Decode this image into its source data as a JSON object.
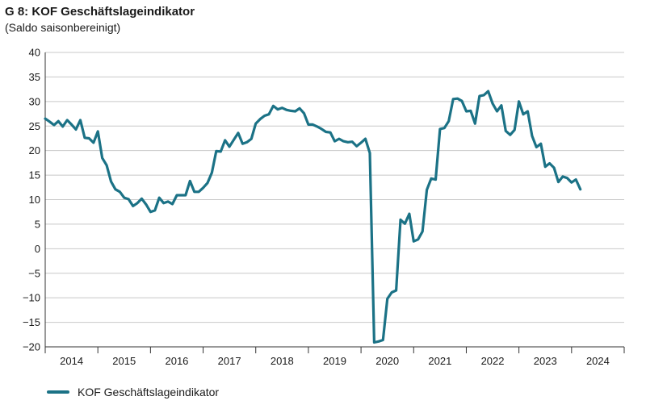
{
  "title": "G 8: KOF Geschäftslageindikator",
  "subtitle": "(Saldo saisonbereinigt)",
  "legend": {
    "label": "KOF Geschäftslageindikator"
  },
  "colors": {
    "series": "#1b7286",
    "grid": "#c8c8c8",
    "axis": "#333333"
  },
  "chart_data": {
    "type": "line",
    "title": "G 8: KOF Geschäftslageindikator",
    "subtitle": "(Saldo saisonbereinigt)",
    "ylim": [
      -20,
      40
    ],
    "yticks": [
      40,
      35,
      30,
      25,
      20,
      15,
      10,
      5,
      0,
      -5,
      -10,
      -15,
      -20
    ],
    "xlim": [
      2014.0,
      2025.0
    ],
    "xtick_labels": [
      "2014",
      "2015",
      "2016",
      "2017",
      "2018",
      "2019",
      "2020",
      "2021",
      "2022",
      "2023",
      "2024"
    ],
    "grid": "horizontal",
    "legend_position": "bottom-left",
    "series": [
      {
        "name": "KOF Geschäftslageindikator",
        "x": [
          2014.0,
          2014.083,
          2014.167,
          2014.25,
          2014.333,
          2014.417,
          2014.5,
          2014.583,
          2014.667,
          2014.75,
          2014.833,
          2014.917,
          2015.0,
          2015.083,
          2015.167,
          2015.25,
          2015.333,
          2015.417,
          2015.5,
          2015.583,
          2015.667,
          2015.75,
          2015.833,
          2015.917,
          2016.0,
          2016.083,
          2016.167,
          2016.25,
          2016.333,
          2016.417,
          2016.5,
          2016.583,
          2016.667,
          2016.75,
          2016.833,
          2016.917,
          2017.0,
          2017.083,
          2017.167,
          2017.25,
          2017.333,
          2017.417,
          2017.5,
          2017.583,
          2017.667,
          2017.75,
          2017.833,
          2017.917,
          2018.0,
          2018.083,
          2018.167,
          2018.25,
          2018.333,
          2018.417,
          2018.5,
          2018.583,
          2018.667,
          2018.75,
          2018.833,
          2018.917,
          2019.0,
          2019.083,
          2019.167,
          2019.25,
          2019.333,
          2019.417,
          2019.5,
          2019.583,
          2019.667,
          2019.75,
          2019.833,
          2019.917,
          2020.0,
          2020.083,
          2020.167,
          2020.25,
          2020.333,
          2020.417,
          2020.5,
          2020.583,
          2020.667,
          2020.75,
          2020.833,
          2020.917,
          2021.0,
          2021.083,
          2021.167,
          2021.25,
          2021.333,
          2021.417,
          2021.5,
          2021.583,
          2021.667,
          2021.75,
          2021.833,
          2021.917,
          2022.0,
          2022.083,
          2022.167,
          2022.25,
          2022.333,
          2022.417,
          2022.5,
          2022.583,
          2022.667,
          2022.75,
          2022.833,
          2022.917,
          2023.0,
          2023.083,
          2023.167,
          2023.25,
          2023.333,
          2023.417,
          2023.5,
          2023.583,
          2023.667,
          2023.75,
          2023.833,
          2023.917,
          2024.0,
          2024.083,
          2024.167
        ],
        "values": [
          26.5,
          25.9,
          25.2,
          26.0,
          24.9,
          26.2,
          25.3,
          24.3,
          26.2,
          22.6,
          22.5,
          21.6,
          23.9,
          18.5,
          17.0,
          13.7,
          12.1,
          11.6,
          10.4,
          10.1,
          8.7,
          9.3,
          10.2,
          9.0,
          7.5,
          7.8,
          10.4,
          9.3,
          9.6,
          9.1,
          10.9,
          10.9,
          10.9,
          13.8,
          11.6,
          11.6,
          12.4,
          13.4,
          15.5,
          19.9,
          19.8,
          22.1,
          20.8,
          22.2,
          23.6,
          21.4,
          21.7,
          22.4,
          25.5,
          26.4,
          27.1,
          27.4,
          29.1,
          28.4,
          28.7,
          28.3,
          28.1,
          28.0,
          28.6,
          27.6,
          25.3,
          25.3,
          24.9,
          24.4,
          23.8,
          23.7,
          21.9,
          22.4,
          21.9,
          21.7,
          21.8,
          20.9,
          21.6,
          22.4,
          19.5,
          -19.1,
          -18.9,
          -18.6,
          -10.2,
          -8.9,
          -8.5,
          5.9,
          5.1,
          7.1,
          1.5,
          1.9,
          3.5,
          12.0,
          14.3,
          14.1,
          24.4,
          24.6,
          26.0,
          30.5,
          30.6,
          30.1,
          28.0,
          28.1,
          25.5,
          31.1,
          31.3,
          32.1,
          29.6,
          28.0,
          29.2,
          24.0,
          23.2,
          24.2,
          30.0,
          27.4,
          28.0,
          23.0,
          20.7,
          21.4,
          16.7,
          17.4,
          16.5,
          13.6,
          14.7,
          14.4,
          13.5,
          14.1,
          12.1
        ]
      }
    ]
  }
}
